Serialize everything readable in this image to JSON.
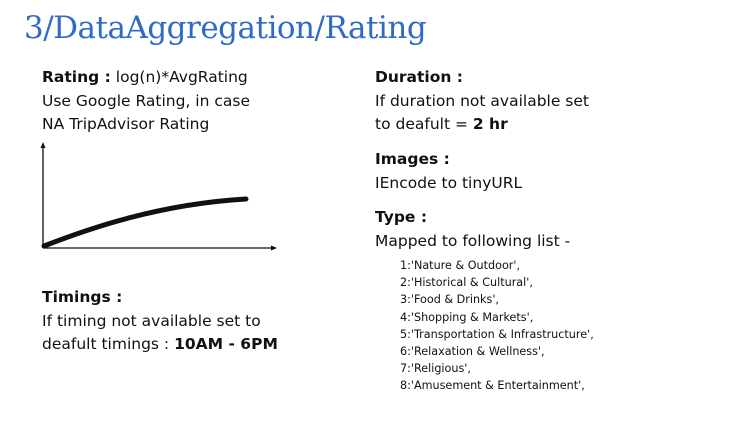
{
  "slide": {
    "title": "3/DataAggregation/Rating"
  },
  "rating": {
    "label": "Rating :",
    "formula": "log(n)*AvgRating",
    "line2": "Use Google Rating, in case",
    "line3": "NA TripAdvisor Rating"
  },
  "timings": {
    "label": "Timings :",
    "line1": "If timing not available set to",
    "line2_prefix": "deafult timings : ",
    "line2_value": "10AM - 6PM"
  },
  "duration": {
    "label": "Duration :",
    "line1": "If duration not available set",
    "line2_prefix": "to deafult = ",
    "line2_value": "2 hr"
  },
  "images": {
    "label": "Images :",
    "line1": "IEncode to tinyURL"
  },
  "type": {
    "label": "Type :",
    "line1": "Mapped to following list -",
    "items": [
      "1:'Nature & Outdoor',",
      "2:'Historical & Cultural',",
      "3:'Food & Drinks',",
      "4:'Shopping & Markets',",
      "5:'Transportation & Infrastructure',",
      "6:'Relaxation & Wellness',",
      "7:'Religious',",
      "8:'Amusement & Entertainment',"
    ]
  }
}
